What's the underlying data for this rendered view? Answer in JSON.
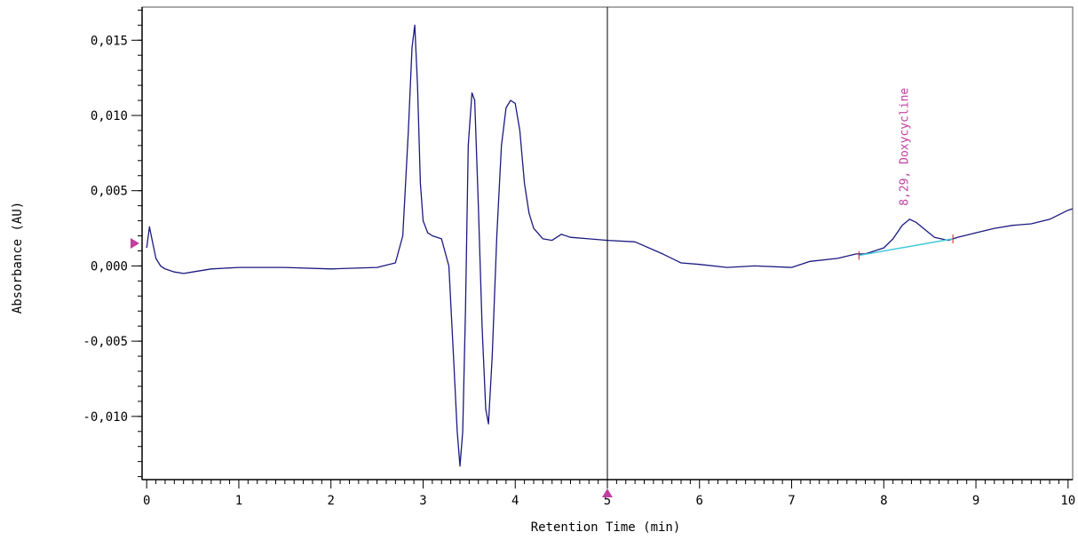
{
  "chart_data": {
    "type": "line",
    "xlabel": "Retention Time (min)",
    "ylabel": "Absorbance (AU)",
    "xlim": [
      -0.05,
      10.05
    ],
    "ylim": [
      -0.0142,
      0.0172
    ],
    "x_ticks": [
      0,
      1,
      2,
      3,
      4,
      5,
      6,
      7,
      8,
      9,
      10
    ],
    "x_tick_labels": [
      "0",
      "1",
      "2",
      "3",
      "4",
      "5",
      "6",
      "7",
      "8",
      "9",
      "10"
    ],
    "y_ticks": [
      0.015,
      0.01,
      0.005,
      0.0,
      -0.005,
      -0.01
    ],
    "y_tick_labels": [
      "0,015",
      "0,010",
      "0,005",
      "0,000",
      "-0,005",
      "-0,010"
    ],
    "grid": false,
    "cursor_x": 5.0,
    "marker_y": 0.0015,
    "colors": {
      "trace": "#1a1a80",
      "baseline": "#40c8d8",
      "annotation": "#c040a0",
      "cursor": "#000000"
    },
    "series": [
      {
        "x": [
          0.0,
          0.03,
          0.06,
          0.1,
          0.15,
          0.2,
          0.3,
          0.4,
          0.5,
          0.7,
          1.0,
          1.5,
          2.0,
          2.5,
          2.7,
          2.78,
          2.84,
          2.88,
          2.91,
          2.94,
          2.97,
          3.0,
          3.05,
          3.1,
          3.2,
          3.28,
          3.33,
          3.37,
          3.4,
          3.43,
          3.46,
          3.49,
          3.53,
          3.56,
          3.6,
          3.64,
          3.68,
          3.71,
          3.75,
          3.8,
          3.85,
          3.9,
          3.95,
          4.0,
          4.05,
          4.1,
          4.15,
          4.2,
          4.3,
          4.4,
          4.5,
          4.6,
          4.8,
          5.0,
          5.3,
          5.6,
          5.8,
          6.0,
          6.3,
          6.6,
          7.0,
          7.2,
          7.5,
          7.7,
          7.8,
          8.0,
          8.1,
          8.2,
          8.28,
          8.35,
          8.45,
          8.55,
          8.7,
          8.8,
          9.0,
          9.2,
          9.4,
          9.6,
          9.8,
          10.0,
          10.1
        ],
        "y": [
          0.0012,
          0.0026,
          0.0017,
          0.0005,
          0.0,
          -0.0002,
          -0.0004,
          -0.0005,
          -0.0004,
          -0.0002,
          -0.0001,
          -0.0001,
          -0.0002,
          -0.0001,
          0.0002,
          0.002,
          0.009,
          0.0145,
          0.016,
          0.012,
          0.0055,
          0.003,
          0.0022,
          0.002,
          0.0018,
          0.0,
          -0.006,
          -0.011,
          -0.0133,
          -0.011,
          -0.003,
          0.008,
          0.0115,
          0.011,
          0.004,
          -0.004,
          -0.0095,
          -0.0105,
          -0.006,
          0.002,
          0.008,
          0.0105,
          0.011,
          0.0108,
          0.009,
          0.0055,
          0.0035,
          0.0025,
          0.0018,
          0.0017,
          0.0021,
          0.0019,
          0.0018,
          0.0017,
          0.0016,
          0.0008,
          0.0002,
          0.0001,
          -0.0001,
          0.0,
          -0.0001,
          0.0003,
          0.0005,
          0.0008,
          0.0008,
          0.0012,
          0.0018,
          0.0027,
          0.0031,
          0.0029,
          0.0024,
          0.0019,
          0.0017,
          0.0019,
          0.0022,
          0.0025,
          0.0027,
          0.0028,
          0.0031,
          0.0037,
          0.0038
        ]
      }
    ],
    "baseline_segment": {
      "x": [
        7.73,
        8.75
      ],
      "y": [
        0.0007,
        0.0018
      ]
    },
    "annotations": [
      {
        "text": "8,29, Doxycycline",
        "x": 8.29,
        "y": 0.0034
      }
    ]
  }
}
